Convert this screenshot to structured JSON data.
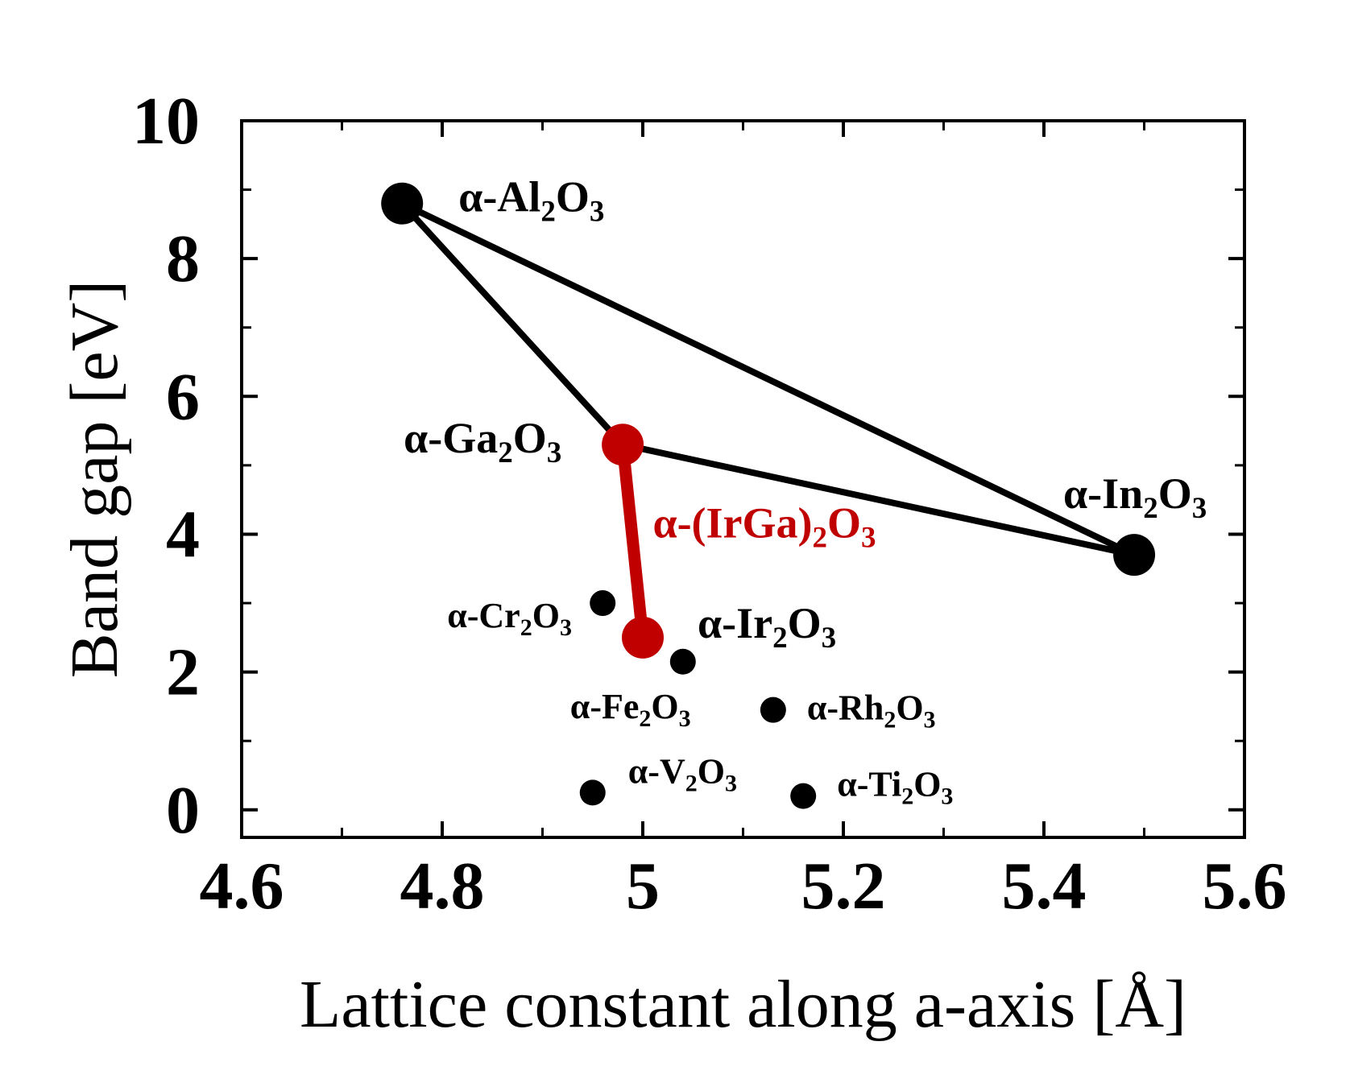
{
  "chart_data": {
    "type": "scatter",
    "xlabel": "Lattice constant along a-axis [Å]",
    "ylabel": "Band gap [eV]",
    "xlim": [
      4.6,
      5.6
    ],
    "ylim": [
      -0.4,
      10
    ],
    "xticks": [
      "4.6",
      "4.8",
      "5",
      "5.2",
      "5.4",
      "5.6"
    ],
    "yticks": [
      "0",
      "2",
      "4",
      "6",
      "8",
      "10"
    ],
    "grid": false,
    "colors": {
      "black": "#000000",
      "red": "#c00000"
    },
    "points": [
      {
        "name": "α-Al2O3",
        "x": 4.76,
        "y": 8.8,
        "size": "large",
        "color": "black",
        "label": {
          "prefix": "α-Al",
          "sub1": "2",
          "mid": "O",
          "sub2": "3"
        }
      },
      {
        "name": "α-In2O3",
        "x": 5.49,
        "y": 3.7,
        "size": "large",
        "color": "black",
        "label": {
          "prefix": "α-In",
          "sub1": "2",
          "mid": "O",
          "sub2": "3"
        }
      },
      {
        "name": "α-Ga2O3",
        "x": 4.98,
        "y": 5.3,
        "size": "large",
        "color": "red",
        "label": {
          "prefix": "α-Ga",
          "sub1": "2",
          "mid": "O",
          "sub2": "3"
        }
      },
      {
        "name": "α-Ir2O3",
        "x": 5.0,
        "y": 2.5,
        "size": "large",
        "color": "red",
        "label": {
          "prefix": "α-Ir",
          "sub1": "2",
          "mid": "O",
          "sub2": "3"
        }
      },
      {
        "name": "α-Cr2O3",
        "x": 4.96,
        "y": 3.0,
        "size": "small",
        "color": "black",
        "label": {
          "prefix": "α-Cr",
          "sub1": "2",
          "mid": "O",
          "sub2": "3"
        }
      },
      {
        "name": "α-Fe2O3",
        "x": 5.04,
        "y": 2.15,
        "size": "small",
        "color": "black",
        "label": {
          "prefix": "α-Fe",
          "sub1": "2",
          "mid": "O",
          "sub2": "3"
        }
      },
      {
        "name": "α-Rh2O3",
        "x": 5.13,
        "y": 1.45,
        "size": "small",
        "color": "black",
        "label": {
          "prefix": "α-Rh",
          "sub1": "2",
          "mid": "O",
          "sub2": "3"
        }
      },
      {
        "name": "α-V2O3",
        "x": 4.95,
        "y": 0.25,
        "size": "small",
        "color": "black",
        "label": {
          "prefix": "α-V",
          "sub1": "2",
          "mid": "O",
          "sub2": "3"
        }
      },
      {
        "name": "α-Ti2O3",
        "x": 5.16,
        "y": 0.2,
        "size": "small",
        "color": "black",
        "label": {
          "prefix": "α-Ti",
          "sub1": "2",
          "mid": "O",
          "sub2": "3"
        }
      }
    ],
    "lines": [
      {
        "name": "Al2O3-In2O3",
        "from": [
          4.76,
          8.8
        ],
        "to": [
          5.49,
          3.7
        ],
        "color": "black"
      },
      {
        "name": "Al2O3-Ga2O3",
        "from": [
          4.76,
          8.8
        ],
        "to": [
          4.98,
          5.3
        ],
        "color": "black"
      },
      {
        "name": "Ga2O3-In2O3",
        "from": [
          4.98,
          5.3
        ],
        "to": [
          5.49,
          3.7
        ],
        "color": "black"
      },
      {
        "name": "(IrGa)2O3",
        "from": [
          4.98,
          5.3
        ],
        "to": [
          5.0,
          2.5
        ],
        "color": "red"
      }
    ],
    "annotations": [
      {
        "name": "α-(IrGa)2O3",
        "x": 5.01,
        "y": 3.95,
        "color": "red",
        "label": {
          "prefix": "α-(IrGa)",
          "sub1": "2",
          "mid": "O",
          "sub2": "3"
        }
      }
    ]
  }
}
